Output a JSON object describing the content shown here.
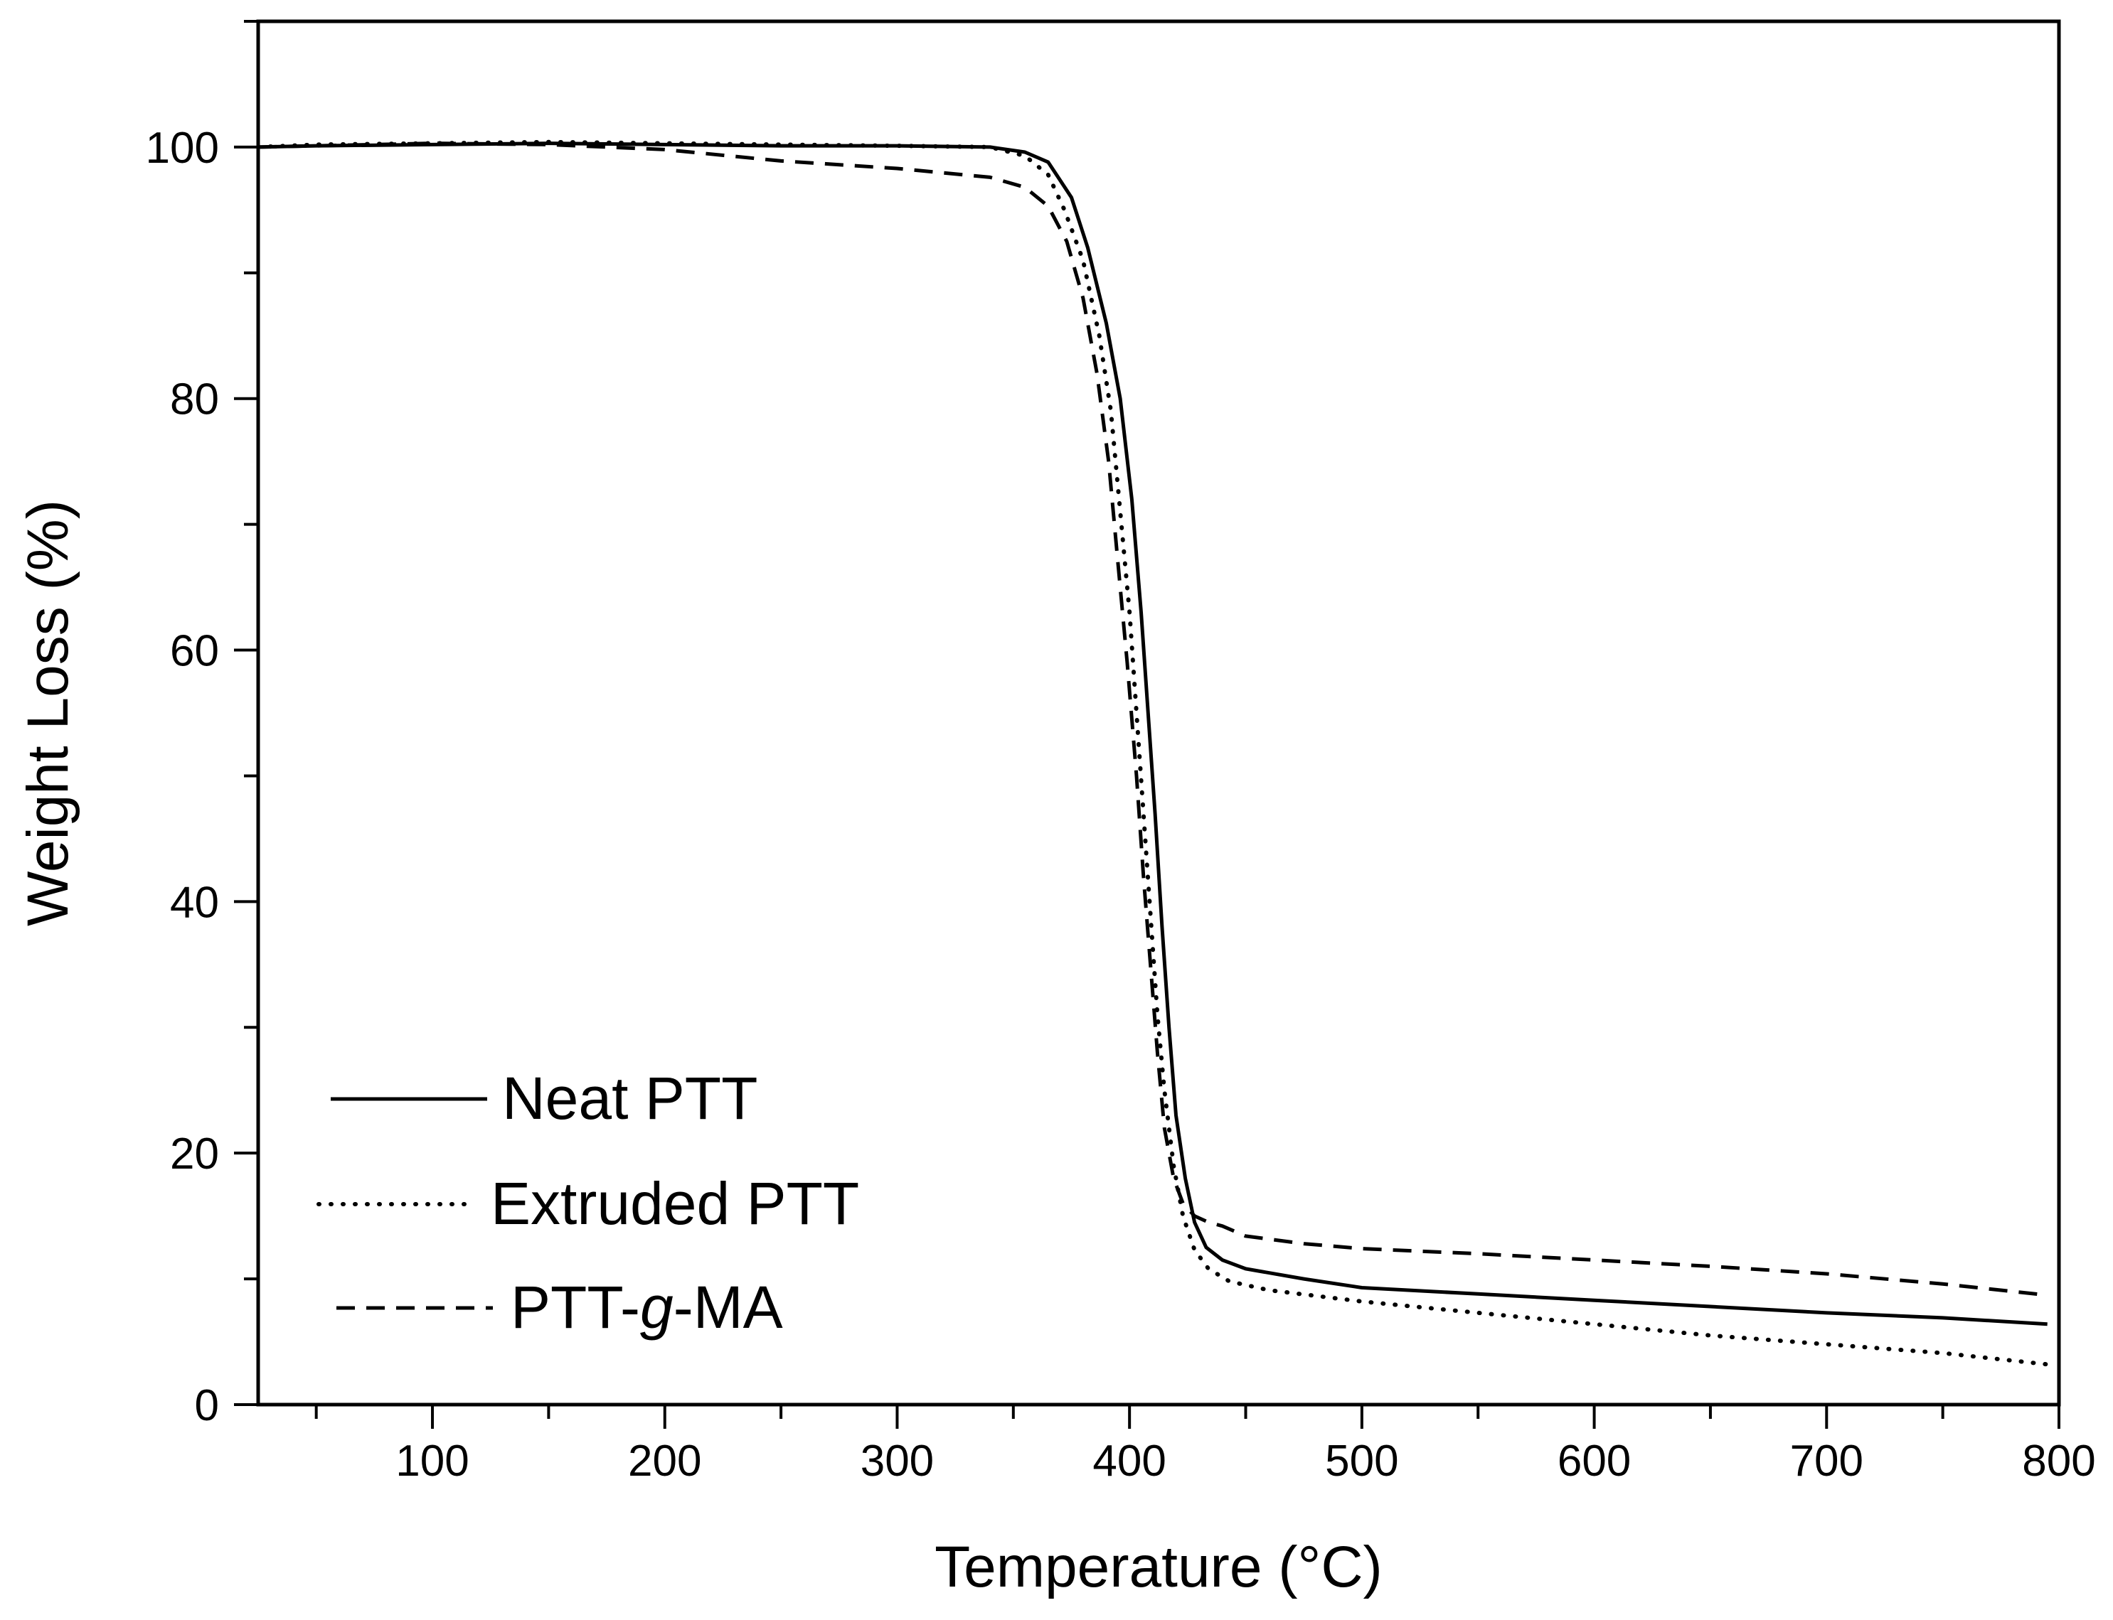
{
  "chart_data": {
    "type": "line",
    "title": "",
    "xlabel": "Temperature (°C)",
    "ylabel": "Weight Loss (%)",
    "xlim": [
      25,
      800
    ],
    "ylim": [
      0,
      110
    ],
    "x_ticks": [
      100,
      200,
      300,
      400,
      500,
      600,
      700,
      800
    ],
    "y_ticks": [
      0,
      20,
      40,
      60,
      80,
      100
    ],
    "grid": false,
    "legend_position": "bottom-left",
    "series": [
      {
        "name": "Neat PTT",
        "style": "solid",
        "points": [
          [
            25,
            100
          ],
          [
            50,
            100.1
          ],
          [
            100,
            100.2
          ],
          [
            150,
            100.3
          ],
          [
            200,
            100.2
          ],
          [
            250,
            100.1
          ],
          [
            300,
            100.1
          ],
          [
            340,
            100
          ],
          [
            355,
            99.6
          ],
          [
            365,
            98.8
          ],
          [
            375,
            96
          ],
          [
            382,
            92
          ],
          [
            390,
            86
          ],
          [
            396,
            80
          ],
          [
            401,
            72
          ],
          [
            405,
            63
          ],
          [
            408,
            55
          ],
          [
            411,
            47
          ],
          [
            414,
            38
          ],
          [
            417,
            30
          ],
          [
            420,
            23
          ],
          [
            424,
            18
          ],
          [
            428,
            14.5
          ],
          [
            433,
            12.5
          ],
          [
            440,
            11.5
          ],
          [
            450,
            10.8
          ],
          [
            475,
            10
          ],
          [
            500,
            9.3
          ],
          [
            550,
            8.8
          ],
          [
            600,
            8.3
          ],
          [
            650,
            7.8
          ],
          [
            700,
            7.3
          ],
          [
            750,
            6.9
          ],
          [
            795,
            6.4
          ]
        ]
      },
      {
        "name": "Extruded PTT",
        "style": "dotted",
        "points": [
          [
            25,
            100
          ],
          [
            50,
            100.2
          ],
          [
            100,
            100.3
          ],
          [
            150,
            100.4
          ],
          [
            200,
            100.3
          ],
          [
            250,
            100.2
          ],
          [
            300,
            100.1
          ],
          [
            340,
            100
          ],
          [
            355,
            99.3
          ],
          [
            365,
            97.8
          ],
          [
            372,
            95
          ],
          [
            380,
            91
          ],
          [
            387,
            85
          ],
          [
            392,
            79
          ],
          [
            396,
            71
          ],
          [
            400,
            63
          ],
          [
            403,
            55
          ],
          [
            406,
            47
          ],
          [
            409,
            39
          ],
          [
            412,
            31
          ],
          [
            415,
            25
          ],
          [
            419,
            19
          ],
          [
            423,
            15
          ],
          [
            428,
            12.3
          ],
          [
            434,
            10.8
          ],
          [
            443,
            9.8
          ],
          [
            460,
            9.1
          ],
          [
            500,
            8.2
          ],
          [
            550,
            7.3
          ],
          [
            600,
            6.4
          ],
          [
            650,
            5.5
          ],
          [
            700,
            4.8
          ],
          [
            750,
            4.1
          ],
          [
            795,
            3.2
          ]
        ]
      },
      {
        "name": "PTT-g-MA",
        "style": "dashed",
        "points": [
          [
            25,
            100
          ],
          [
            100,
            100.3
          ],
          [
            150,
            100.2
          ],
          [
            200,
            99.8
          ],
          [
            250,
            98.9
          ],
          [
            300,
            98.3
          ],
          [
            340,
            97.6
          ],
          [
            355,
            96.8
          ],
          [
            365,
            95.3
          ],
          [
            373,
            92.5
          ],
          [
            380,
            88
          ],
          [
            386,
            82
          ],
          [
            391,
            75
          ],
          [
            395,
            67
          ],
          [
            399,
            59
          ],
          [
            403,
            50
          ],
          [
            406,
            42
          ],
          [
            409,
            35
          ],
          [
            412,
            28
          ],
          [
            415,
            22
          ],
          [
            419,
            18
          ],
          [
            423,
            16
          ],
          [
            428,
            15
          ],
          [
            434,
            14.5
          ],
          [
            440,
            14.2
          ],
          [
            450,
            13.4
          ],
          [
            475,
            12.8
          ],
          [
            500,
            12.4
          ],
          [
            550,
            12
          ],
          [
            600,
            11.5
          ],
          [
            650,
            11
          ],
          [
            700,
            10.4
          ],
          [
            750,
            9.6
          ],
          [
            795,
            8.7
          ]
        ]
      }
    ],
    "legend": {
      "entries": [
        {
          "label_text": "Neat PTT",
          "parts": [
            "Neat PTT"
          ],
          "style": "solid"
        },
        {
          "label_text": "Extruded PTT",
          "parts": [
            "Extruded PTT"
          ],
          "style": "dotted"
        },
        {
          "label_text": "PTT-g-MA",
          "parts": [
            "PTT-",
            "g",
            "-MA"
          ],
          "style": "dashed"
        }
      ]
    }
  }
}
